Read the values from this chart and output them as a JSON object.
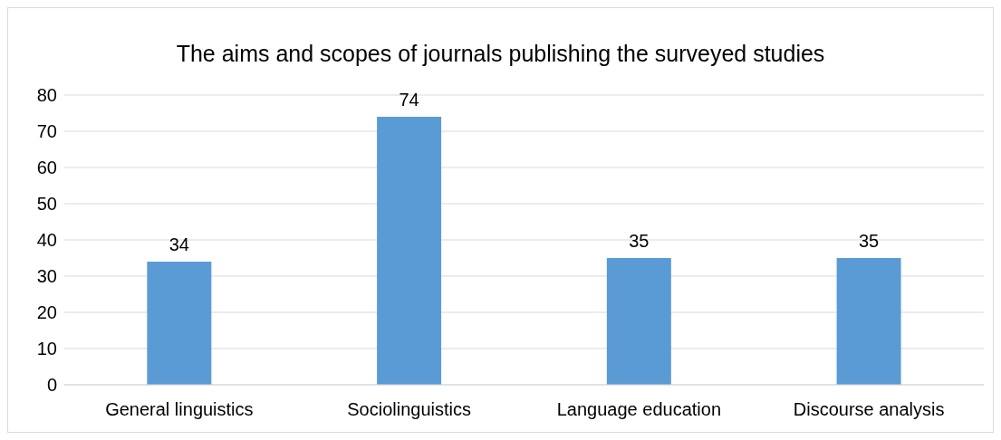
{
  "chart_data": {
    "type": "bar",
    "title": "The aims and scopes of journals publishing the surveyed studies",
    "categories": [
      "General linguistics",
      "Sociolinguistics",
      "Language education",
      "Discourse analysis"
    ],
    "values": [
      34,
      74,
      35,
      35
    ],
    "color": "#5b9bd5",
    "ylim": [
      0,
      80
    ],
    "yticks": [
      0,
      10,
      20,
      30,
      40,
      50,
      60,
      70,
      80
    ],
    "grid": "y",
    "data_labels": true
  }
}
